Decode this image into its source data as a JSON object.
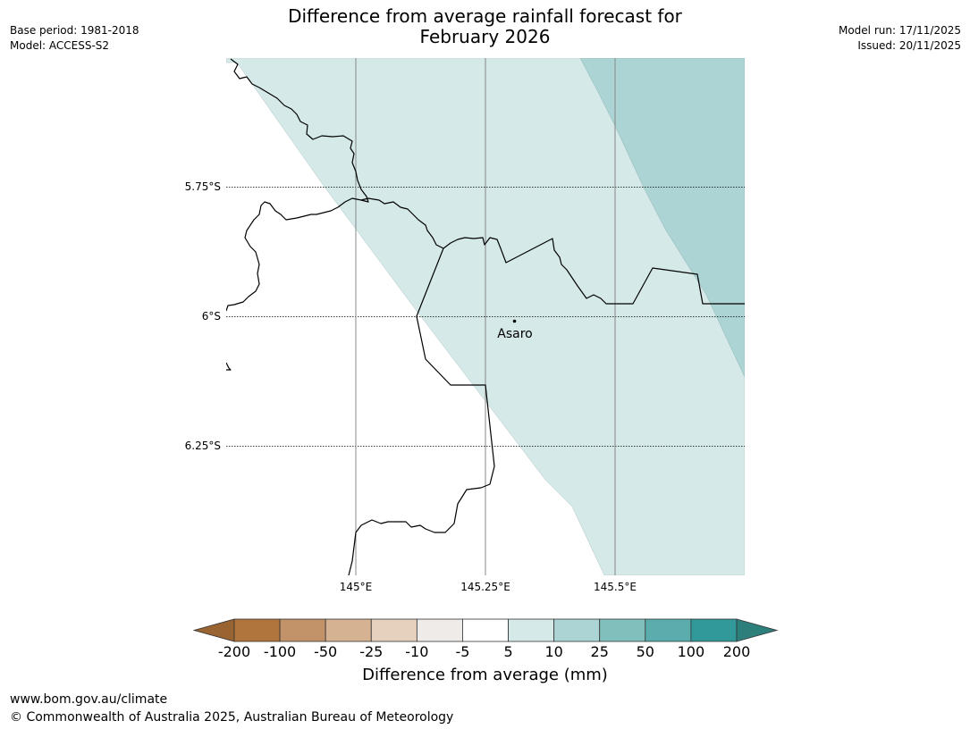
{
  "header": {
    "title_line1": "Difference from average rainfall forecast for",
    "title_line2": "February 2026",
    "base_period": "Base period: 1981-2018",
    "model": "Model: ACCESS-S2",
    "model_run": "Model run: 17/11/2025",
    "issued": "Issued: 20/11/2025"
  },
  "map": {
    "lat_labels": [
      "5.75°S",
      "6°S",
      "6.25°S"
    ],
    "lon_labels": [
      "145°E",
      "145.25°E",
      "145.5°E"
    ],
    "place": "Asaro",
    "colors": {
      "band_5_10": "#d4e9e8",
      "band_10_25": "#acd4d4",
      "border": "#000000",
      "graticule": "#888888"
    }
  },
  "colorbar": {
    "ticks": [
      "-200",
      "-100",
      "-50",
      "-25",
      "-10",
      "-5",
      "5",
      "10",
      "25",
      "50",
      "100",
      "200"
    ],
    "colors": [
      "#9a6332",
      "#b0753c",
      "#c29268",
      "#d5b291",
      "#e6d1bf",
      "#efebe8",
      "#ffffff",
      "#d4e9e8",
      "#acd4d4",
      "#80c0bc",
      "#5aadac",
      "#32999a",
      "#2c7f7b"
    ],
    "title": "Difference from average (mm)"
  },
  "footer": {
    "url": "www.bom.gov.au/climate",
    "copyright": "© Commonwealth of Australia 2025, Australian Bureau of Meteorology"
  }
}
